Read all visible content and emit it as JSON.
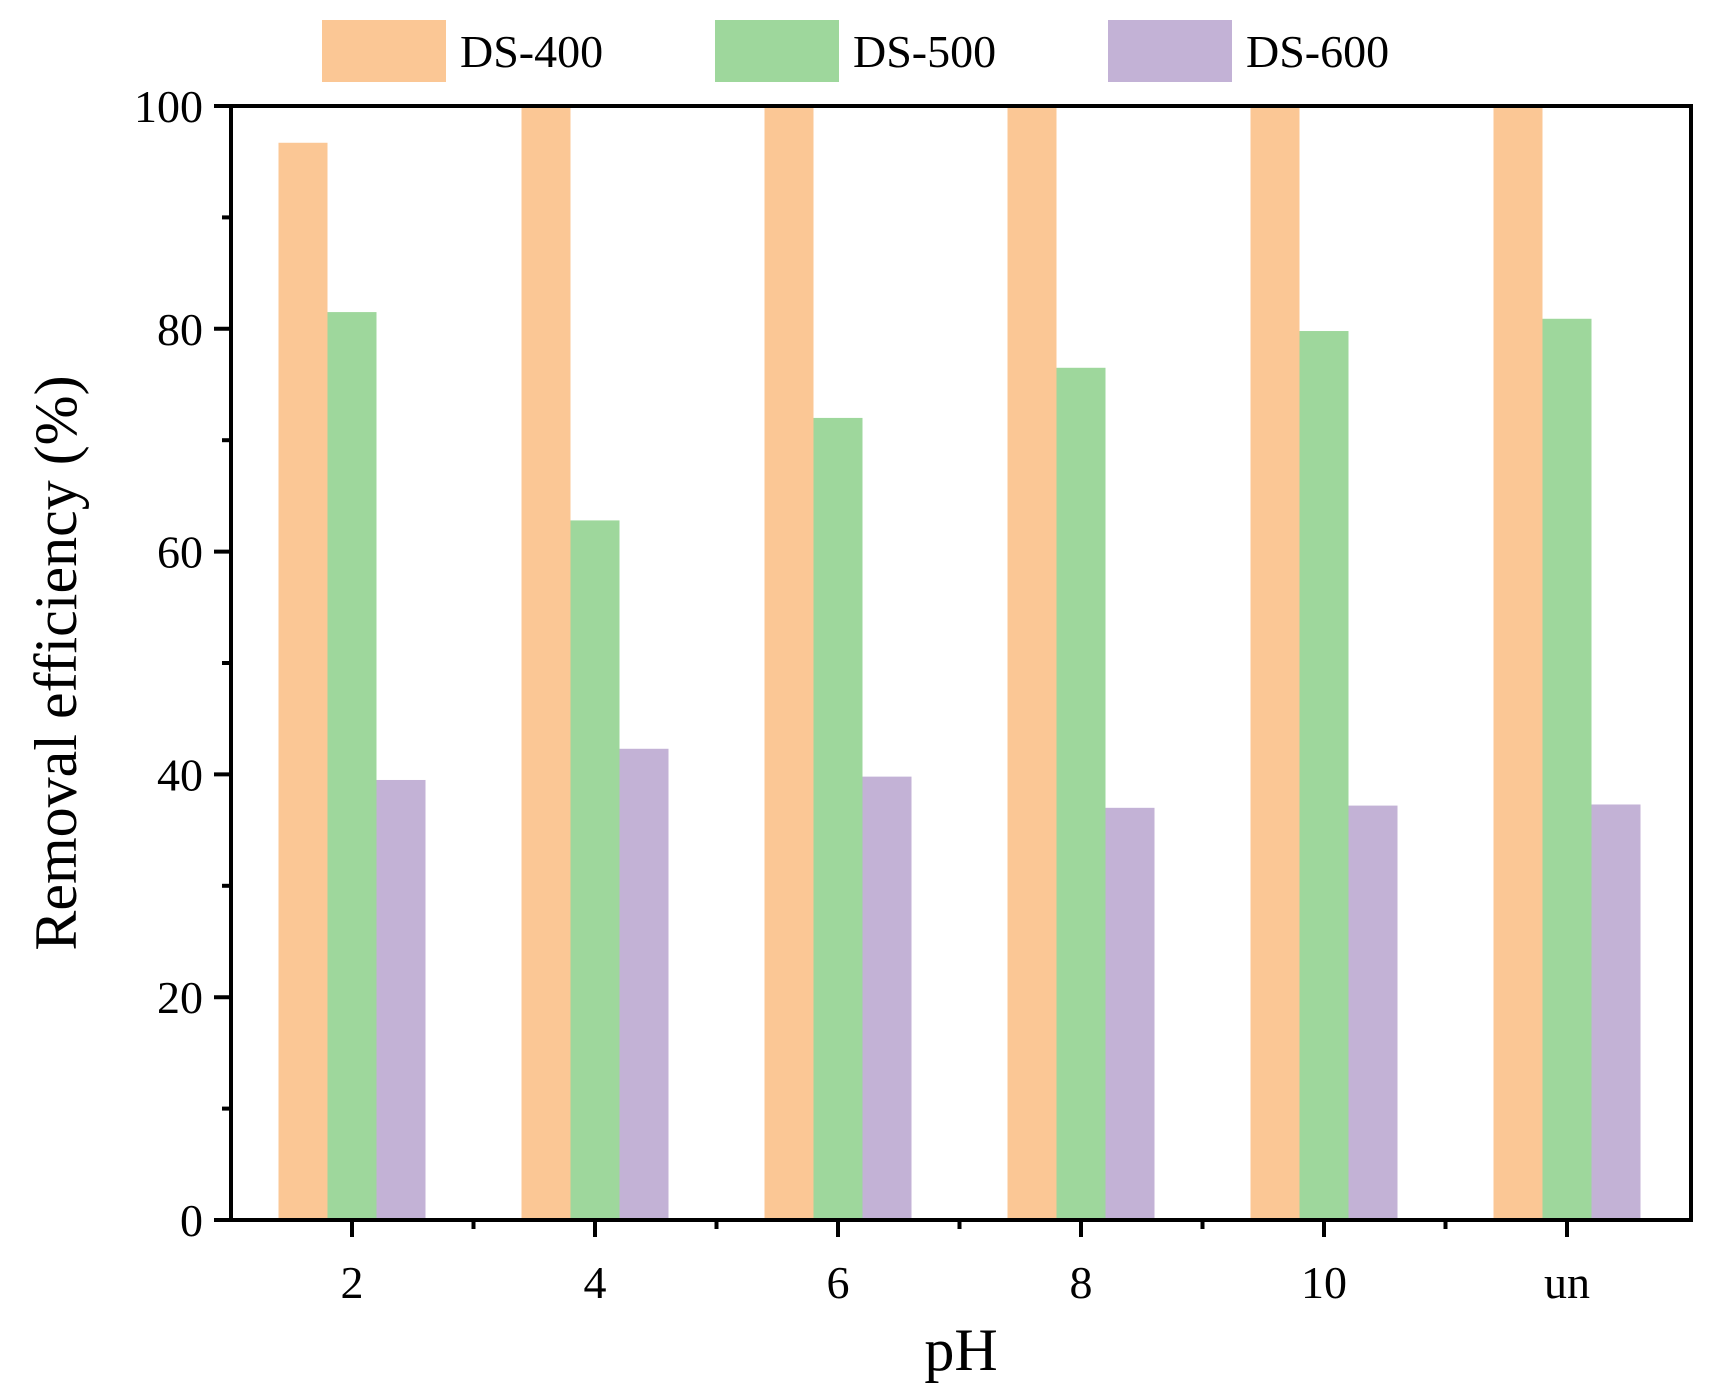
{
  "chart_data": {
    "type": "bar",
    "title": "",
    "xlabel": "pH",
    "ylabel": "Removal efficiency (%)",
    "categories": [
      "2",
      "4",
      "6",
      "8",
      "10",
      "un"
    ],
    "ylim": [
      0,
      100
    ],
    "yticks": [
      0,
      20,
      40,
      60,
      80,
      100
    ],
    "grid": false,
    "legend_position": "top",
    "series": [
      {
        "name": "DS-400",
        "color": "#FBC795",
        "values": [
          96.7,
          100,
          100,
          100,
          100,
          100
        ]
      },
      {
        "name": "DS-500",
        "color": "#9ED79C",
        "values": [
          81.5,
          62.8,
          72.0,
          76.5,
          79.8,
          80.9
        ]
      },
      {
        "name": "DS-600",
        "color": "#C3B2D6",
        "values": [
          39.5,
          42.3,
          39.8,
          37.0,
          37.2,
          37.3
        ]
      }
    ]
  }
}
